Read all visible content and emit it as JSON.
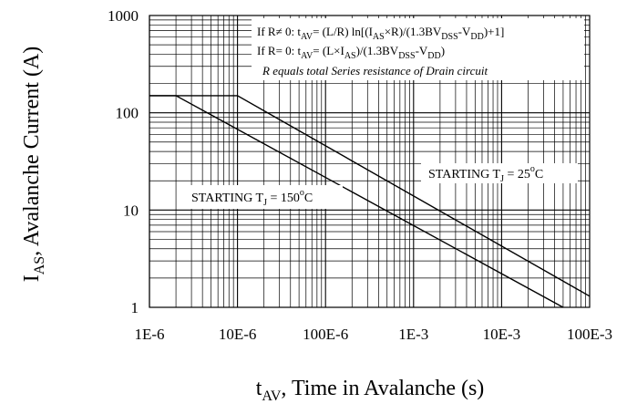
{
  "chart_data": {
    "type": "line",
    "x_scale": "log",
    "y_scale": "log",
    "xlim": [
      1e-06,
      0.1
    ],
    "ylim": [
      1,
      1000
    ],
    "grid": true,
    "x_ticks": [
      {
        "value": 1e-06,
        "label": "1E-6"
      },
      {
        "value": 1e-05,
        "label": "10E-6"
      },
      {
        "value": 0.0001,
        "label": "100E-6"
      },
      {
        "value": 0.001,
        "label": "1E-3"
      },
      {
        "value": 0.01,
        "label": "10E-3"
      },
      {
        "value": 0.1,
        "label": "100E-3"
      }
    ],
    "y_ticks": [
      {
        "value": 1,
        "label": "1"
      },
      {
        "value": 10,
        "label": "10"
      },
      {
        "value": 100,
        "label": "100"
      },
      {
        "value": 1000,
        "label": "1000"
      }
    ],
    "xlabel": {
      "main": "t",
      "sub": "AV",
      "rest": ", Time in Avalanche (s)"
    },
    "ylabel": {
      "main": "I",
      "sub": "AS",
      "rest": ", Avalanche Current (A)"
    },
    "annotations": {
      "line1": {
        "a": "If R≠ 0: t",
        "a_sub": "AV",
        "b": "= (L/R) ln[(I",
        "b_sub": "AS",
        "c": "×R)/(1.3BV",
        "c_sub": "DSS",
        "d": "-V",
        "d_sub": "DD",
        "e": ")+1]"
      },
      "line2": {
        "a": "If R= 0: t",
        "a_sub": "AV",
        "b": "= (L×I",
        "b_sub": "AS",
        "c": ")/(1.3BV",
        "c_sub": "DSS",
        "d": "-V",
        "d_sub": "DD",
        "e": ")"
      },
      "line3": "R equals total Series resistance of Drain circuit"
    },
    "series": [
      {
        "label": {
          "a": "STARTING T",
          "sub": "J",
          "b": " = 25",
          "deg": "o",
          "c": "C"
        },
        "x": [
          1e-06,
          1e-05,
          0.1
        ],
        "y": [
          150,
          150,
          1.3
        ]
      },
      {
        "label": {
          "a": "STARTING T",
          "sub": "J",
          "b": " = 150",
          "deg": "o",
          "c": "C"
        },
        "x": [
          1e-06,
          2e-06,
          0.05
        ],
        "y": [
          150,
          150,
          1
        ]
      }
    ]
  }
}
